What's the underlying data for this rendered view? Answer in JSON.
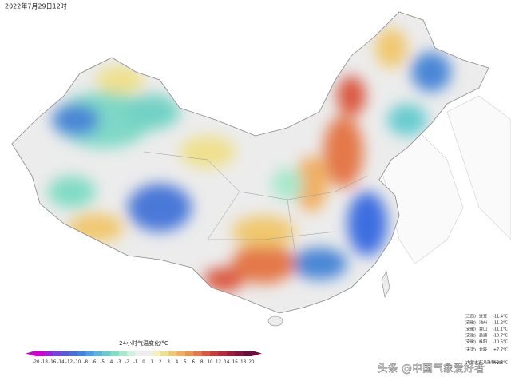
{
  "header": {
    "timestamp": "2022年7月29日12时"
  },
  "legend": {
    "title": "24小时气温变化/°C",
    "ticks": [
      -20,
      -18,
      -16,
      -14,
      -12,
      -10,
      -8,
      -6,
      -5,
      -4,
      -3,
      -2,
      -1,
      0,
      1,
      2,
      3,
      4,
      5,
      6,
      8,
      10,
      12,
      14,
      16,
      18,
      20
    ],
    "colors": [
      "#d000d0",
      "#a020e0",
      "#7a40e0",
      "#5a5ad8",
      "#4a6ed8",
      "#3c86e0",
      "#48a0e0",
      "#58b8dc",
      "#68ccd0",
      "#80dcc4",
      "#a8e8cc",
      "#d0f0e0",
      "#eeeeee",
      "#eeeeee",
      "#f4f0b8",
      "#eee08c",
      "#f0c870",
      "#f0ae60",
      "#ec9452",
      "#e4784a",
      "#da5840",
      "#c83c3a",
      "#b42a3a",
      "#9c1c3c",
      "#841440",
      "#6c0c40"
    ]
  },
  "stations": [
    {
      "province": "(江西)",
      "name": "进贤",
      "change": "-11.4°C"
    },
    {
      "province": "(安徽)",
      "name": "池州",
      "change": "-11.2°C"
    },
    {
      "province": "(安徽)",
      "name": "黄山",
      "change": "-11.1°C"
    },
    {
      "province": "(安徽)",
      "name": "巢湖",
      "change": "-10.7°C"
    },
    {
      "province": "(安徽)",
      "name": "枞阳",
      "change": "-10.5°C"
    },
    {
      "province": "(天津)",
      "name": "北辰",
      "change": "+7.7°C"
    },
    {
      "province": "(内蒙古)",
      "name": "东乌珠穆沁旗",
      "change": "+8.5°C"
    }
  ],
  "watermark": "头条 @中国气象爱好者"
}
